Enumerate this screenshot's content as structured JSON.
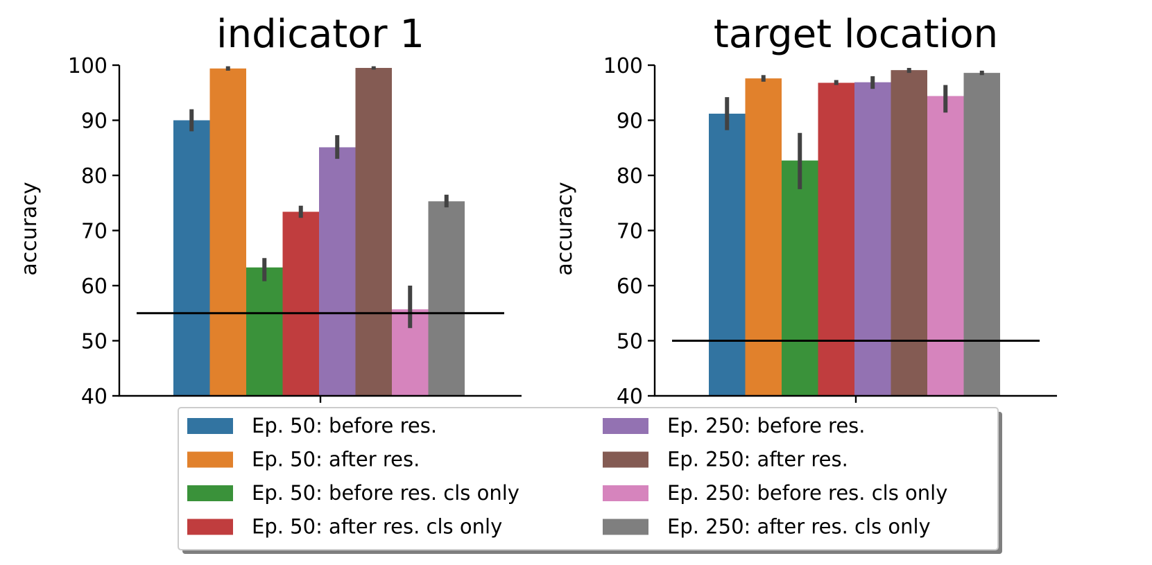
{
  "series_names": [
    "Ep. 50: before res.",
    "Ep. 50: after res.",
    "Ep. 50: before res. cls only",
    "Ep. 50: after res. cls only",
    "Ep. 250: before res.",
    "Ep. 250: after res.",
    "Ep. 250: before res. cls only",
    "Ep. 250: after res. cls only"
  ],
  "series_colors": [
    "#3274a1",
    "#e1812c",
    "#3a923a",
    "#c03d3e",
    "#9372b2",
    "#845b53",
    "#d684bd",
    "#7f7f7f"
  ],
  "chart_data": [
    {
      "type": "bar",
      "title": "indicator 1",
      "xlabel": "",
      "ylabel": "accuracy",
      "ylim": [
        40,
        100
      ],
      "yticks": [
        "40",
        "50",
        "60",
        "70",
        "80",
        "90",
        "100"
      ],
      "values": [
        90.0,
        99.4,
        63.3,
        73.4,
        85.1,
        99.5,
        55.7,
        75.3
      ],
      "errors": [
        [
          88.0,
          92.0
        ],
        [
          99.0,
          99.8
        ],
        [
          60.8,
          65.0
        ],
        [
          72.3,
          74.5
        ],
        [
          83.0,
          87.3
        ],
        [
          99.2,
          99.8
        ],
        [
          52.3,
          60.0
        ],
        [
          74.2,
          76.5
        ]
      ],
      "baseline": 55
    },
    {
      "type": "bar",
      "title": "target location",
      "xlabel": "",
      "ylabel": "accuracy",
      "ylim": [
        40,
        100
      ],
      "yticks": [
        "40",
        "50",
        "60",
        "70",
        "80",
        "90",
        "100"
      ],
      "values": [
        91.2,
        97.6,
        82.7,
        96.8,
        96.9,
        99.1,
        94.4,
        98.6
      ],
      "errors": [
        [
          88.2,
          94.2
        ],
        [
          97.0,
          98.2
        ],
        [
          77.5,
          87.7
        ],
        [
          96.4,
          97.3
        ],
        [
          95.7,
          98.0
        ],
        [
          98.6,
          99.5
        ],
        [
          91.4,
          96.4
        ],
        [
          98.2,
          99.0
        ]
      ],
      "baseline": 50
    }
  ]
}
